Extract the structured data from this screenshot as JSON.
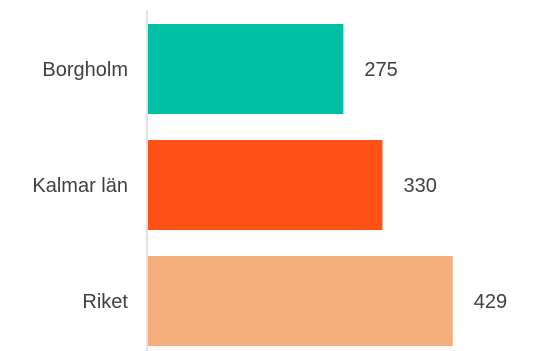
{
  "chart_data": {
    "type": "bar",
    "orientation": "horizontal",
    "categories": [
      "Borgholm",
      "Kalmar län",
      "Riket"
    ],
    "values": [
      275,
      330,
      429
    ],
    "colors": [
      "#00BFA5",
      "#FF5115",
      "#F5AD7B"
    ],
    "xlim": [
      0,
      525
    ],
    "grid": false,
    "legend": "none",
    "data_labels": [
      "275",
      "330",
      "429"
    ]
  }
}
